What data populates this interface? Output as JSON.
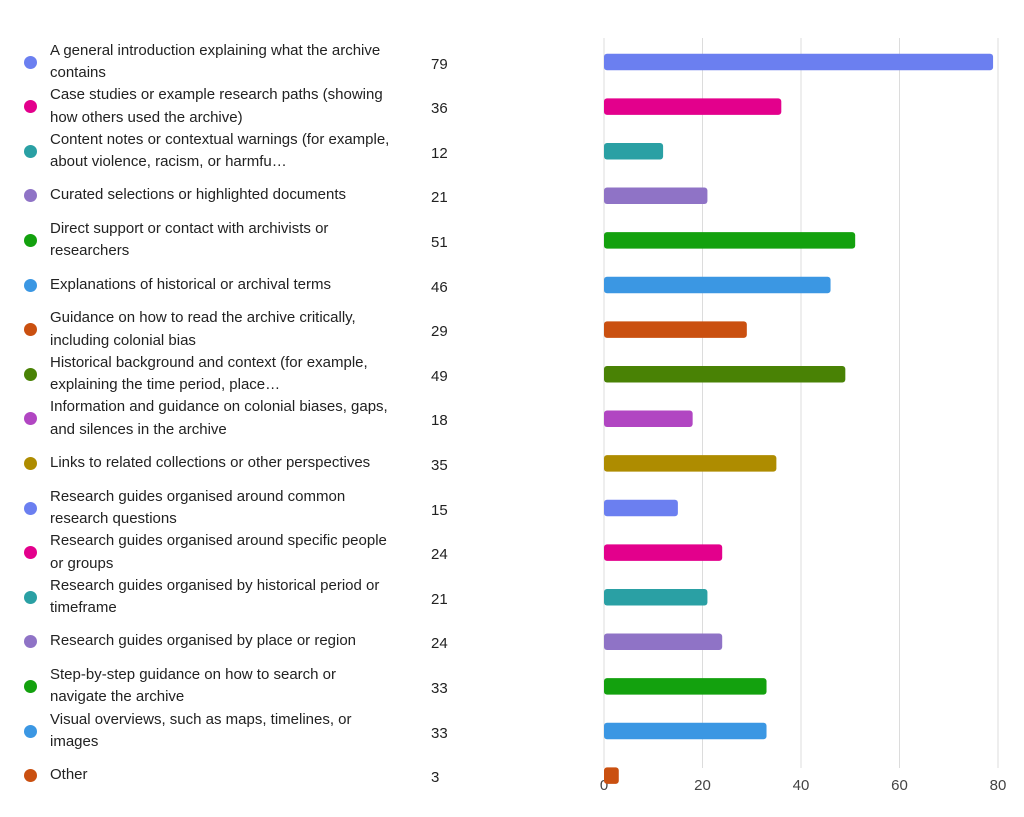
{
  "chart_data": {
    "type": "bar",
    "orientation": "horizontal",
    "categories": [
      "A general introduction explaining what the archive contains",
      "Case studies or example research paths (showing how others used the archive)",
      "Content notes or contextual warnings (for example, about violence, racism, or harmfu…",
      "Curated selections or highlighted documents",
      "Direct support or contact with archivists or researchers",
      "Explanations of historical or archival terms",
      "Guidance on how to read the archive critically, including colonial bias",
      "Historical background and context (for example, explaining the time period, place…",
      "Information and guidance on colonial biases, gaps, and silences in the archive",
      "Links to related collections or other perspectives",
      "Research guides organised around common research questions",
      "Research guides organised around specific people or groups",
      "Research guides organised by historical period or timeframe",
      "Research guides organised by place or region",
      "Step-by-step guidance on how to search or navigate the archive",
      "Visual overviews, such as maps, timelines, or images",
      "Other"
    ],
    "values": [
      79,
      36,
      12,
      21,
      51,
      46,
      29,
      49,
      18,
      35,
      15,
      24,
      21,
      24,
      33,
      33,
      3
    ],
    "colors": [
      "#6b7ff0",
      "#e3008c",
      "#2aa0a4",
      "#8f73c6",
      "#13a10e",
      "#3b97e3",
      "#ca5010",
      "#498205",
      "#b146c2",
      "#ae8c00",
      "#6b7ff0",
      "#e3008c",
      "#2aa0a4",
      "#8f73c6",
      "#13a10e",
      "#3b97e3",
      "#ca5010"
    ],
    "xlim": [
      0,
      80
    ],
    "xticks": [
      0,
      20,
      40,
      60,
      80
    ],
    "grid": true,
    "title": "",
    "xlabel": "",
    "ylabel": ""
  }
}
